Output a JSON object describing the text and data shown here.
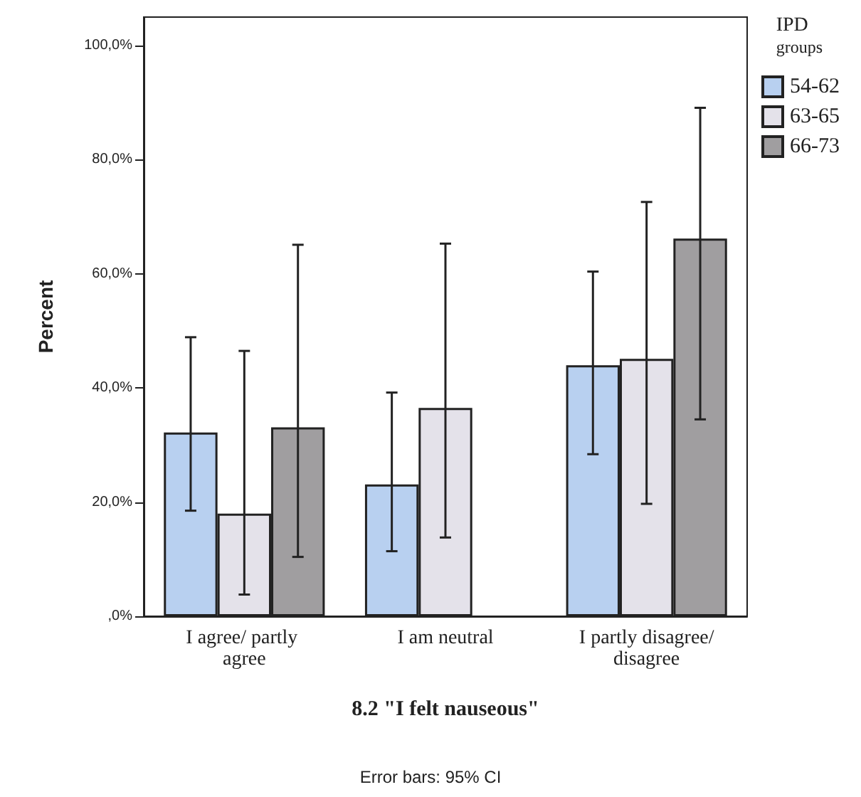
{
  "chart_data": {
    "type": "bar",
    "ylabel": "Percent",
    "xlabel": "8.2 \"I felt nauseous\"",
    "legend_title": "IPD groups",
    "legend": "top right",
    "grid": false,
    "categories": [
      "I agree/ partly agree",
      "I am neutral",
      "I partly disagree/disagree"
    ],
    "ylim": [
      0,
      105
    ],
    "yticks": [
      {
        "value": 0,
        "label": ",0%"
      },
      {
        "value": 20,
        "label": "20,0%"
      },
      {
        "value": 40,
        "label": "40,0%"
      },
      {
        "value": 60,
        "label": "60,0%"
      },
      {
        "value": 80,
        "label": "80,0%"
      },
      {
        "value": 100,
        "label": "100,0%"
      }
    ],
    "series": [
      {
        "name": "54-62",
        "color": "#b8d0f0",
        "values": [
          32.2,
          23.1,
          44.0
        ],
        "errors": [
          [
            18.5,
            48.9
          ],
          [
            11.4,
            39.2
          ],
          [
            28.4,
            60.4
          ]
        ]
      },
      {
        "name": "63-65",
        "color": "#e4e2ea",
        "values": [
          18.0,
          36.5,
          45.1
        ],
        "errors": [
          [
            3.8,
            46.5
          ],
          [
            13.8,
            65.3
          ],
          [
            19.7,
            72.6
          ]
        ]
      },
      {
        "name": "66-73",
        "color": "#a09ea0",
        "values": [
          33.1,
          0,
          66.2
        ],
        "errors": [
          [
            10.4,
            65.1
          ],
          null,
          [
            34.5,
            89.1
          ]
        ]
      }
    ],
    "annotations": [
      "Error bars: 95% CI"
    ]
  }
}
